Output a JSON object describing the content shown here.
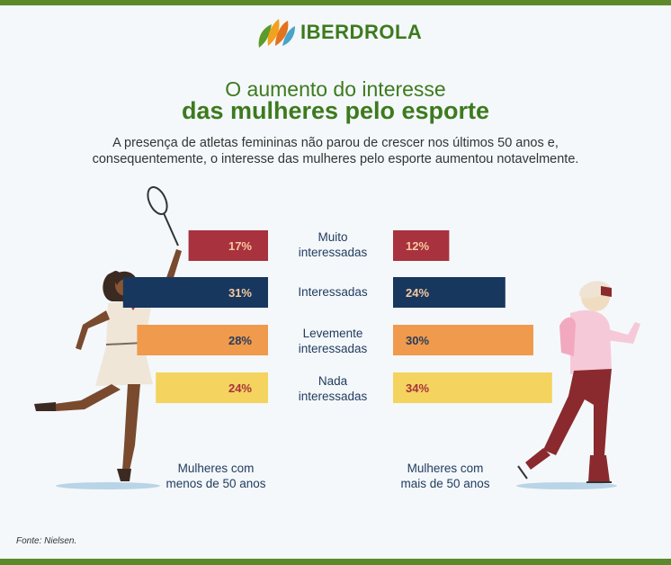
{
  "header": {
    "logo_text": "IBERDROLA"
  },
  "title_line1": "O aumento do interesse",
  "title_line2": "das mulheres pelo esporte",
  "subtitle": "A presença de atletas femininas não parou de crescer nos últimos 50 anos e, consequentemente, o interesse das mulheres pelo esporte aumentou notavelmente.",
  "category_labels": [
    [
      "Muito",
      "interessadas"
    ],
    [
      "Interessadas"
    ],
    [
      "Levemente",
      "interessadas"
    ],
    [
      "Nada",
      "interessadas"
    ]
  ],
  "group_labels": {
    "left": [
      "Mulheres com",
      "menos de 50 anos"
    ],
    "right": [
      "Mulheres com",
      "mais de 50 anos"
    ]
  },
  "source": "Fonte: Nielsen.",
  "colors": {
    "brand_green": "#3d7a1e",
    "muito": "#a8323e",
    "interessadas": "#17375e",
    "levemente": "#ef9a4c",
    "nada": "#f4d35e",
    "label_text": "#1f3a5c"
  },
  "chart_data": {
    "type": "bar",
    "orientation": "horizontal-back-to-back",
    "categories": [
      "Muito interessadas",
      "Interessadas",
      "Levemente interessadas",
      "Nada interessadas"
    ],
    "series": [
      {
        "name": "Mulheres com menos de 50 anos",
        "values": [
          17,
          31,
          28,
          24
        ],
        "labels": [
          "17%",
          "31%",
          "28%",
          "24%"
        ]
      },
      {
        "name": "Mulheres com mais de 50 anos",
        "values": [
          12,
          24,
          30,
          34
        ],
        "labels": [
          "12%",
          "24%",
          "30%",
          "34%"
        ]
      }
    ],
    "unit": "%",
    "bar_colors": [
      "#a8323e",
      "#17375e",
      "#ef9a4c",
      "#f4d35e"
    ],
    "label_colors": [
      "#f7c9a0",
      "#f7c9a0",
      "#2a3b5c",
      "#a8323e"
    ]
  }
}
